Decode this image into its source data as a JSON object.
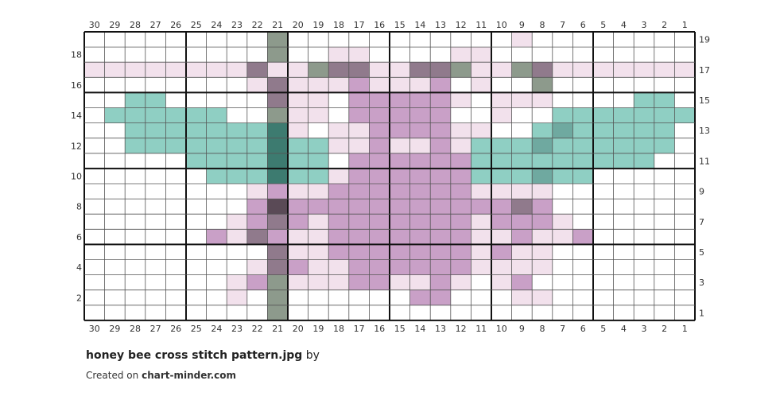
{
  "palette": {
    ".": "#ffffff",
    "a": "#f2e1ec",
    "b": "#c9a0c7",
    "c": "#8fcfc3",
    "d": "#6fa9a0",
    "e": "#3d7b70",
    "f": "#8d9a8c",
    "g": "#907a8c",
    "h": "#5a4a56"
  },
  "columns_labels": [
    "30",
    "29",
    "28",
    "27",
    "26",
    "25",
    "24",
    "23",
    "22",
    "21",
    "20",
    "19",
    "18",
    "17",
    "16",
    "15",
    "14",
    "13",
    "12",
    "11",
    "10",
    "9",
    "8",
    "7",
    "6",
    "5",
    "4",
    "3",
    "2",
    "1"
  ],
  "left_row_labels": [
    "18",
    "16",
    "14",
    "12",
    "10",
    "8",
    "6",
    "4",
    "2"
  ],
  "right_row_labels": [
    "19",
    "17",
    "15",
    "13",
    "11",
    "9",
    "7",
    "5",
    "3",
    "1"
  ],
  "chart_data": {
    "type": "heatmap",
    "columns": 30,
    "rows": 19,
    "legend_note": "cell letters map to palette colours",
    "grid": [
      ".........f...........a........",
      ".........f..aa....aa..........",
      "aaaaaaaagaafggaaggfaafgaaaaaaa",
      "........agaaabaaab.a..f.......",
      "..cc.....gaa.bbbbba.aaa....cc.",
      ".cccccc..faa.bbbbb..a..ccccccc",
      "..cccccccea.aabbbbaa..cdccccc.",
      "..ccccccceccaabaabacccdcccccc.",
      ".....ccccecc.bbbbbbccccccccc..",
      "......ccceccabbbbbbcccdcc.....",
      "........abaabbbbbbbaaaa.......",
      "........bhbbbbbbbbbbbgb.......",
      ".......abgbabbbbbbbabbba......",
      "......bagbaabbbbbbbaabaab.....",
      ".........gaabbbbbbbabaa.......",
      "........agbaabbbbbbaaaa.......",
      ".......abfaaabbaaba.ab........",
      ".......a.f......bb...aa.......",
      ".........f...................."
    ]
  },
  "footer": {
    "title": "honey bee cross stitch pattern.jpg",
    "by": "by",
    "created_prefix": "Created on",
    "site": "chart-minder.com"
  }
}
